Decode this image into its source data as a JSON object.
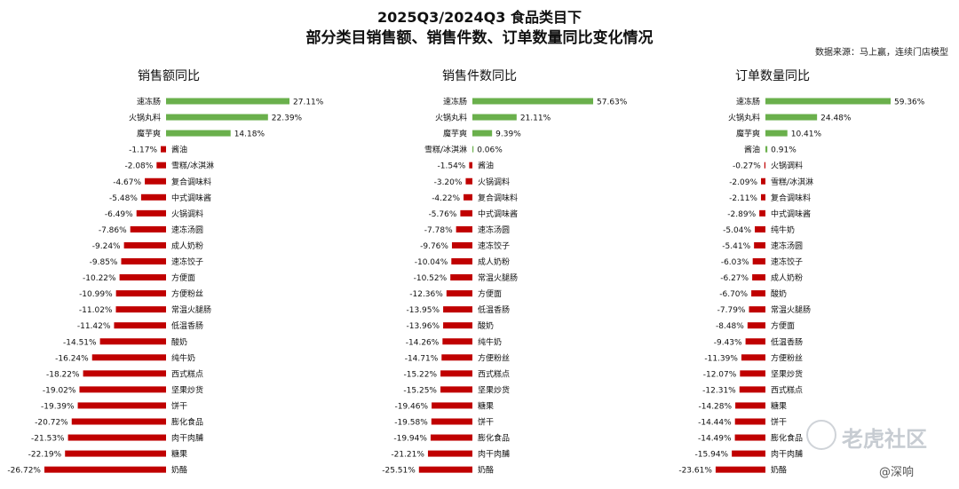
{
  "header": {
    "title": "2025Q3/2024Q3 食品类目下",
    "subtitle": "部分类目销售额、销售件数、订单数量同比变化情况",
    "source": "数据来源：马上赢，连续门店模型"
  },
  "watermark": {
    "text": "老虎社区",
    "credit": "@深响"
  },
  "colors": {
    "positive": "#6ab04c",
    "negative": "#c00000"
  },
  "chart_data": [
    {
      "type": "bar",
      "title": "销售额同比",
      "unit": "%",
      "categories": [
        "速冻肠",
        "火锅丸料",
        "魔芋爽",
        "酱油",
        "雪糕/冰淇淋",
        "复合调味料",
        "中式调味酱",
        "火锅调料",
        "速冻汤圆",
        "成人奶粉",
        "速冻饺子",
        "方便面",
        "方便粉丝",
        "常温火腿肠",
        "低温香肠",
        "酸奶",
        "纯牛奶",
        "西式糕点",
        "坚果炒货",
        "饼干",
        "膨化食品",
        "肉干肉脯",
        "糖果",
        "奶酪"
      ],
      "values": [
        27.11,
        22.39,
        14.18,
        -1.17,
        -2.08,
        -4.67,
        -5.48,
        -6.49,
        -7.86,
        -9.24,
        -9.85,
        -10.22,
        -10.99,
        -11.02,
        -11.42,
        -14.51,
        -16.24,
        -18.22,
        -19.02,
        -19.39,
        -20.72,
        -21.53,
        -22.19,
        -26.72
      ],
      "labels": [
        "27.11%",
        "22.39%",
        "14.18%",
        "-1.17%",
        "-2.08%",
        "-4.67%",
        "-5.48%",
        "-6.49%",
        "-7.86%",
        "-9.24%",
        "-9.85%",
        "-10.22%",
        "-10.99%",
        "-11.02%",
        "-11.42%",
        "-14.51%",
        "-16.24%",
        "-18.22%",
        "-19.02%",
        "-19.39%",
        "-20.72%",
        "-21.53%",
        "-22.19%",
        "-26.72%"
      ]
    },
    {
      "type": "bar",
      "title": "销售件数同比",
      "unit": "%",
      "categories": [
        "速冻肠",
        "火锅丸料",
        "魔芋爽",
        "雪糕/冰淇淋",
        "酱油",
        "火锅调料",
        "复合调味料",
        "中式调味酱",
        "速冻汤圆",
        "速冻饺子",
        "成人奶粉",
        "常温火腿肠",
        "方便面",
        "低温香肠",
        "酸奶",
        "纯牛奶",
        "方便粉丝",
        "西式糕点",
        "坚果炒货",
        "糖果",
        "饼干",
        "膨化食品",
        "肉干肉脯",
        "奶酪"
      ],
      "values": [
        57.63,
        21.11,
        9.39,
        0.06,
        -1.54,
        -3.2,
        -4.22,
        -5.76,
        -7.78,
        -9.76,
        -10.04,
        -10.52,
        -12.36,
        -13.95,
        -13.96,
        -14.26,
        -14.71,
        -15.22,
        -15.25,
        -19.46,
        -19.58,
        -19.94,
        -21.21,
        -25.51
      ],
      "labels": [
        "57.63%",
        "21.11%",
        "9.39%",
        "0.06%",
        "-1.54%",
        "-3.20%",
        "-4.22%",
        "-5.76%",
        "-7.78%",
        "-9.76%",
        "-10.04%",
        "-10.52%",
        "-12.36%",
        "-13.95%",
        "-13.96%",
        "-14.26%",
        "-14.71%",
        "-15.22%",
        "-15.25%",
        "-19.46%",
        "-19.58%",
        "-19.94%",
        "-21.21%",
        "-25.51%"
      ]
    },
    {
      "type": "bar",
      "title": "订单数量同比",
      "unit": "%",
      "categories": [
        "速冻肠",
        "火锅丸料",
        "魔芋爽",
        "酱油",
        "火锅调料",
        "雪糕/冰淇淋",
        "复合调味料",
        "中式调味酱",
        "纯牛奶",
        "速冻汤圆",
        "速冻饺子",
        "成人奶粉",
        "酸奶",
        "常温火腿肠",
        "方便面",
        "低温香肠",
        "方便粉丝",
        "坚果炒货",
        "西式糕点",
        "糖果",
        "饼干",
        "膨化食品",
        "肉干肉脯",
        "奶酪"
      ],
      "values": [
        59.36,
        24.48,
        10.41,
        0.91,
        -0.27,
        -2.09,
        -2.11,
        -2.89,
        -5.04,
        -5.41,
        -6.03,
        -6.27,
        -6.7,
        -7.79,
        -8.48,
        -9.43,
        -11.39,
        -12.07,
        -12.31,
        -14.28,
        -14.44,
        -14.49,
        -15.94,
        -23.61
      ],
      "labels": [
        "59.36%",
        "24.48%",
        "10.41%",
        "0.91%",
        "-0.27%",
        "-2.09%",
        "-2.11%",
        "-2.89%",
        "-5.04%",
        "-5.41%",
        "-6.03%",
        "-6.27%",
        "-6.70%",
        "-7.79%",
        "-8.48%",
        "-9.43%",
        "-11.39%",
        "-12.07%",
        "-12.31%",
        "-14.28%",
        "-14.44%",
        "-14.49%",
        "-15.94%",
        "-23.61%"
      ]
    }
  ]
}
